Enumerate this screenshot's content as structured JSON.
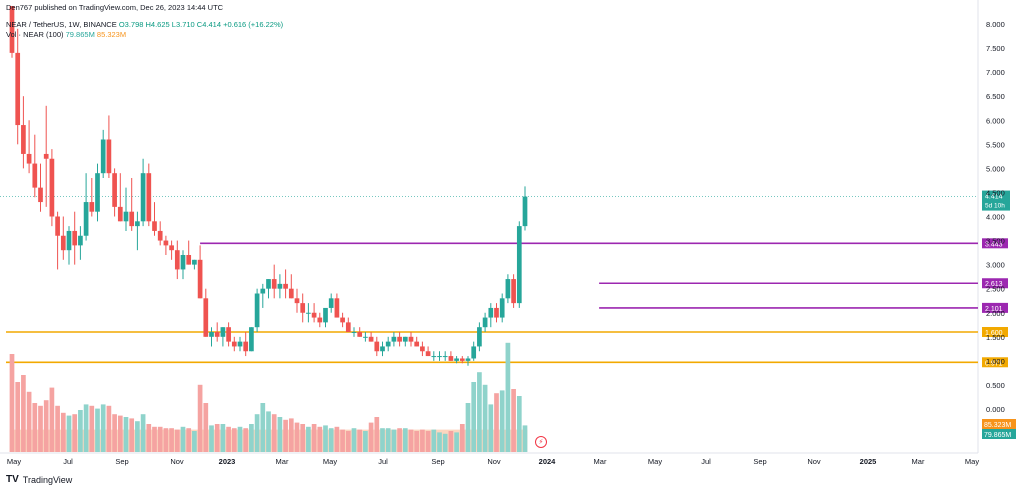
{
  "header": {
    "published": "Den767 published on TradingView.com, Dec 26, 2023 14:44 UTC",
    "symbol": "NEAR / TetherUS, 1W, BINANCE",
    "ohlc": "O3.798  H4.625  L3.710  C4.414  +0.616 (+16.22%)",
    "vol_label": "Vol · NEAR (100)",
    "vol_value_1": "79.865M",
    "vol_value_2": "85.323M"
  },
  "footer": {
    "brand": "TradingView",
    "brand_mark": "TV"
  },
  "colors": {
    "up": "#26a69a",
    "down": "#ef5350",
    "upVol": "#8fd3cb",
    "downVol": "#f5a3a1",
    "maVol": "#f7b48a",
    "support": "#f2a900",
    "resistance": "#9c27b0",
    "last": "#26a69a"
  },
  "chart_data": {
    "type": "candlestick",
    "title": "NEAR / TetherUS, 1W, BINANCE",
    "y_axis_ticks": [
      "8.000",
      "7.500",
      "7.000",
      "6.500",
      "6.000",
      "5.500",
      "5.000",
      "4.500",
      "4.000",
      "3.500",
      "3.000",
      "2.500",
      "2.000",
      "1.500",
      "1.000",
      "0.500",
      "0.000"
    ],
    "ylim": [
      -0.3,
      8.3
    ],
    "x_axis_ticks": [
      "May",
      "Jul",
      "Sep",
      "Nov",
      "2023",
      "Mar",
      "May",
      "Jul",
      "Sep",
      "Nov",
      "2024",
      "Mar",
      "May",
      "Jul",
      "Sep",
      "Nov",
      "2025",
      "Mar",
      "May"
    ],
    "horizontal_levels": [
      {
        "value": 3.443,
        "label": "3.443",
        "kind": "resistance",
        "start_index": 33
      },
      {
        "value": 2.613,
        "label": "2.613",
        "kind": "resistance",
        "start_index": 103
      },
      {
        "value": 2.101,
        "label": "2.101",
        "kind": "resistance",
        "start_index": 103
      },
      {
        "value": 1.6,
        "label": "1.600",
        "kind": "support",
        "start_index": 0
      },
      {
        "value": 0.971,
        "label": "0.971",
        "kind": "support",
        "start_index": 0
      }
    ],
    "last_price": {
      "value": 4.414,
      "label": "4.414",
      "countdown": "5d 10h"
    },
    "volume_labels": [
      "85.323M",
      "79.865M"
    ],
    "candles": [
      [
        8.8,
        9.2,
        7.3,
        7.4
      ],
      [
        7.4,
        7.9,
        5.5,
        5.9
      ],
      [
        5.9,
        6.5,
        5.0,
        5.3
      ],
      [
        5.3,
        6.0,
        4.9,
        5.1
      ],
      [
        5.1,
        5.7,
        4.4,
        4.6
      ],
      [
        4.6,
        5.1,
        4.1,
        4.3
      ],
      [
        5.3,
        6.3,
        4.2,
        5.2
      ],
      [
        5.2,
        5.4,
        3.8,
        4.0
      ],
      [
        4.0,
        4.1,
        2.9,
        3.6
      ],
      [
        3.6,
        4.0,
        3.1,
        3.3
      ],
      [
        3.3,
        3.8,
        3.0,
        3.7
      ],
      [
        3.7,
        4.1,
        3.0,
        3.4
      ],
      [
        3.4,
        3.8,
        3.1,
        3.6
      ],
      [
        3.6,
        4.9,
        3.5,
        4.3
      ],
      [
        4.3,
        4.8,
        4.0,
        4.1
      ],
      [
        4.1,
        5.1,
        3.9,
        4.9
      ],
      [
        4.9,
        5.8,
        4.8,
        5.6
      ],
      [
        5.6,
        6.1,
        4.8,
        4.9
      ],
      [
        4.9,
        5.0,
        4.0,
        4.2
      ],
      [
        4.2,
        4.9,
        3.9,
        3.9
      ],
      [
        3.9,
        4.6,
        3.7,
        4.1
      ],
      [
        4.1,
        4.8,
        3.7,
        3.8
      ],
      [
        3.8,
        4.1,
        3.3,
        3.9
      ],
      [
        3.9,
        5.2,
        3.8,
        4.9
      ],
      [
        4.9,
        5.1,
        3.8,
        3.9
      ],
      [
        3.9,
        4.3,
        3.6,
        3.7
      ],
      [
        3.7,
        3.9,
        3.4,
        3.5
      ],
      [
        3.5,
        3.6,
        3.2,
        3.4
      ],
      [
        3.4,
        3.5,
        3.1,
        3.3
      ],
      [
        3.3,
        3.5,
        2.7,
        2.9
      ],
      [
        2.9,
        3.3,
        2.7,
        3.2
      ],
      [
        3.2,
        3.5,
        3.0,
        3.0
      ],
      [
        3.0,
        3.1,
        2.9,
        3.1
      ],
      [
        3.1,
        3.4,
        2.3,
        2.3
      ],
      [
        2.3,
        2.5,
        1.5,
        1.5
      ],
      [
        1.5,
        1.7,
        1.3,
        1.6
      ],
      [
        1.6,
        1.8,
        1.4,
        1.5
      ],
      [
        1.5,
        1.7,
        1.3,
        1.7
      ],
      [
        1.7,
        1.8,
        1.3,
        1.4
      ],
      [
        1.4,
        1.5,
        1.2,
        1.3
      ],
      [
        1.3,
        1.5,
        1.2,
        1.4
      ],
      [
        1.4,
        1.6,
        1.1,
        1.2
      ],
      [
        1.2,
        1.7,
        1.2,
        1.7
      ],
      [
        1.7,
        2.5,
        1.6,
        2.4
      ],
      [
        2.4,
        2.6,
        2.1,
        2.5
      ],
      [
        2.5,
        2.7,
        2.3,
        2.7
      ],
      [
        2.7,
        3.0,
        2.3,
        2.5
      ],
      [
        2.5,
        2.8,
        2.3,
        2.6
      ],
      [
        2.6,
        2.9,
        2.3,
        2.5
      ],
      [
        2.5,
        2.8,
        2.3,
        2.3
      ],
      [
        2.3,
        2.5,
        2.0,
        2.2
      ],
      [
        2.2,
        2.4,
        1.8,
        2.0
      ],
      [
        2.0,
        2.2,
        1.8,
        2.0
      ],
      [
        2.0,
        2.2,
        1.8,
        1.9
      ],
      [
        1.9,
        2.0,
        1.7,
        1.8
      ],
      [
        1.8,
        2.1,
        1.7,
        2.1
      ],
      [
        2.1,
        2.4,
        2.0,
        2.3
      ],
      [
        2.3,
        2.4,
        1.9,
        1.9
      ],
      [
        1.9,
        2.0,
        1.7,
        1.8
      ],
      [
        1.8,
        1.9,
        1.6,
        1.6
      ],
      [
        1.6,
        1.7,
        1.5,
        1.6
      ],
      [
        1.6,
        1.7,
        1.5,
        1.5
      ],
      [
        1.5,
        1.6,
        1.4,
        1.5
      ],
      [
        1.5,
        1.6,
        1.4,
        1.4
      ],
      [
        1.4,
        1.5,
        1.1,
        1.2
      ],
      [
        1.2,
        1.4,
        1.1,
        1.3
      ],
      [
        1.3,
        1.5,
        1.2,
        1.4
      ],
      [
        1.4,
        1.6,
        1.3,
        1.5
      ],
      [
        1.5,
        1.6,
        1.3,
        1.4
      ],
      [
        1.4,
        1.5,
        1.3,
        1.5
      ],
      [
        1.5,
        1.6,
        1.3,
        1.4
      ],
      [
        1.4,
        1.5,
        1.3,
        1.3
      ],
      [
        1.3,
        1.4,
        1.1,
        1.2
      ],
      [
        1.2,
        1.3,
        1.1,
        1.1
      ],
      [
        1.1,
        1.2,
        1.0,
        1.1
      ],
      [
        1.1,
        1.2,
        1.0,
        1.1
      ],
      [
        1.1,
        1.2,
        1.0,
        1.1
      ],
      [
        1.1,
        1.2,
        1.0,
        1.0
      ],
      [
        1.0,
        1.1,
        0.95,
        1.05
      ],
      [
        1.05,
        1.1,
        0.95,
        1.0
      ],
      [
        1.0,
        1.1,
        0.9,
        1.05
      ],
      [
        1.05,
        1.4,
        1.0,
        1.3
      ],
      [
        1.3,
        1.8,
        1.2,
        1.7
      ],
      [
        1.7,
        2.0,
        1.6,
        1.9
      ],
      [
        1.9,
        2.2,
        1.7,
        2.1
      ],
      [
        2.1,
        2.2,
        1.8,
        1.9
      ],
      [
        1.9,
        2.4,
        1.8,
        2.3
      ],
      [
        2.3,
        2.8,
        2.2,
        2.7
      ],
      [
        2.7,
        2.8,
        2.1,
        2.2
      ],
      [
        2.2,
        3.9,
        2.1,
        3.8
      ],
      [
        3.8,
        4.625,
        3.71,
        4.414
      ]
    ],
    "volumes": [
      7.0,
      5.0,
      5.5,
      4.3,
      3.5,
      3.3,
      3.7,
      4.6,
      3.3,
      2.8,
      2.6,
      2.7,
      3.0,
      3.4,
      3.3,
      3.1,
      3.4,
      3.3,
      2.7,
      2.6,
      2.5,
      2.4,
      2.2,
      2.7,
      2.0,
      1.8,
      1.8,
      1.7,
      1.7,
      1.6,
      1.8,
      1.7,
      1.5,
      4.8,
      3.5,
      1.9,
      2.0,
      2.0,
      1.8,
      1.7,
      1.8,
      1.7,
      2.0,
      2.7,
      3.5,
      2.9,
      2.7,
      2.5,
      2.3,
      2.4,
      2.1,
      2.0,
      1.8,
      2.0,
      1.8,
      1.9,
      1.7,
      1.8,
      1.6,
      1.5,
      1.7,
      1.6,
      1.5,
      2.1,
      2.5,
      1.7,
      1.7,
      1.6,
      1.7,
      1.7,
      1.6,
      1.5,
      1.6,
      1.5,
      1.6,
      1.4,
      1.3,
      1.5,
      1.4,
      2.0,
      3.5,
      5.0,
      5.7,
      4.8,
      3.4,
      4.2,
      4.4,
      7.8,
      4.5,
      4.0,
      1.9
    ],
    "volume_ma_level": 1.6
  }
}
